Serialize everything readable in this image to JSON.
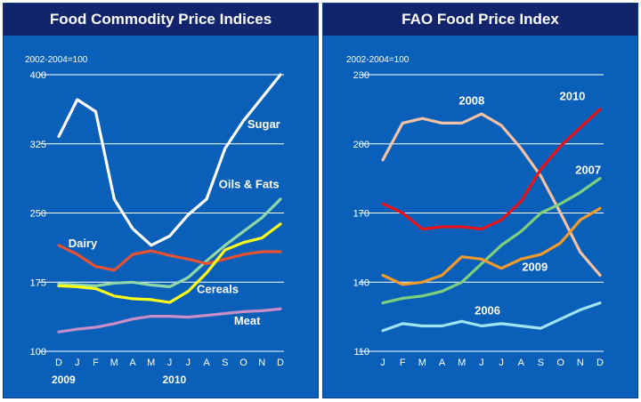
{
  "chart_data": [
    {
      "type": "line",
      "title": "Food Commodity Price Indices",
      "unit_label": "2002-2004=100",
      "categories": [
        "D",
        "J",
        "F",
        "M",
        "A",
        "M",
        "J",
        "J",
        "A",
        "S",
        "O",
        "N",
        "D"
      ],
      "year_labels": [
        {
          "text": "2009",
          "index": 0
        },
        {
          "text": "2010",
          "index": 6
        }
      ],
      "ylim": [
        100,
        400
      ],
      "yticks": [
        100,
        175,
        250,
        325,
        400
      ],
      "series": [
        {
          "name": "Sugar",
          "color": "#ffffff",
          "values": [
            333,
            373,
            360,
            265,
            233,
            215,
            225,
            248,
            265,
            320,
            350,
            375,
            400
          ],
          "label_index": 11.1,
          "label_value": 342
        },
        {
          "name": "Oils & Fats",
          "color": "#8fd7a8",
          "values": [
            173,
            172,
            171,
            174,
            175,
            172,
            170,
            180,
            198,
            215,
            230,
            245,
            265
          ],
          "label_index": 10.3,
          "label_value": 277
        },
        {
          "name": "Dairy",
          "color": "#e55232",
          "values": [
            215,
            205,
            192,
            188,
            205,
            209,
            204,
            200,
            195,
            200,
            205,
            208,
            208
          ],
          "label_index": 1.3,
          "label_value": 213
        },
        {
          "name": "Cereals",
          "color": "#ffff19",
          "values": [
            171,
            170,
            168,
            160,
            157,
            156,
            153,
            165,
            185,
            210,
            218,
            223,
            238
          ],
          "label_index": 8.6,
          "label_value": 163
        },
        {
          "name": "Meat",
          "color": "#c98ec8",
          "values": [
            121,
            124,
            126,
            130,
            135,
            138,
            138,
            137,
            139,
            141,
            143,
            144,
            146
          ],
          "label_index": 10.2,
          "label_value": 129
        }
      ]
    },
    {
      "type": "line",
      "title": "FAO Food Price Index",
      "unit_label": "2002-2004=100",
      "categories": [
        "J",
        "F",
        "M",
        "A",
        "M",
        "J",
        "J",
        "A",
        "S",
        "O",
        "N",
        "D"
      ],
      "ylim": [
        110,
        230
      ],
      "yticks": [
        110,
        140,
        170,
        200,
        230
      ],
      "series": [
        {
          "name": "2008",
          "color": "#f3c1a3",
          "values": [
            193,
            209,
            211,
            209,
            209,
            213,
            208,
            198,
            186,
            170,
            153,
            143
          ],
          "label_index": 4.5,
          "label_value": 217
        },
        {
          "name": "2010",
          "color": "#e8141a",
          "values": [
            174,
            170,
            163,
            164,
            164,
            163,
            167,
            175,
            189,
            199,
            207,
            215
          ],
          "label_index": 9.6,
          "label_value": 219
        },
        {
          "name": "2007",
          "color": "#7fd07d",
          "values": [
            131,
            133,
            134,
            136,
            140,
            148,
            156,
            162,
            170,
            174,
            179,
            185
          ],
          "label_index": 10.4,
          "label_value": 187
        },
        {
          "name": "2009",
          "color": "#f49a2a",
          "values": [
            143,
            139,
            140,
            143,
            151,
            150,
            146,
            150,
            152,
            157,
            167,
            172
          ],
          "label_index": 7.7,
          "label_value": 145
        },
        {
          "name": "2006",
          "color": "#9fe3f3",
          "values": [
            119,
            122,
            121,
            121,
            123,
            121,
            122,
            121,
            120,
            124,
            128,
            131
          ],
          "label_index": 5.3,
          "label_value": 126
        }
      ]
    }
  ]
}
